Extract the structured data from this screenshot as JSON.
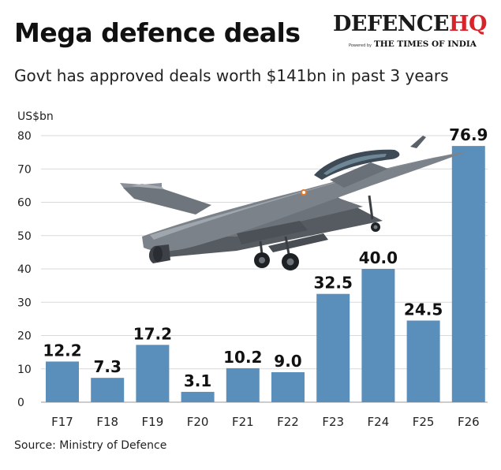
{
  "header": {
    "title": "Mega defence deals",
    "subtitle": "Govt has approved deals worth $141bn in past 3 years"
  },
  "brand": {
    "name_main": "DEFENCE",
    "name_accent": "HQ",
    "powered_by": "Powered by",
    "publisher": "THE TIMES OF INDIA",
    "accent_color": "#d8232a"
  },
  "footer": {
    "source": "Source: Ministry of Defence"
  },
  "illustration": {
    "icon": "fighter-jet-icon"
  },
  "chart_data": {
    "type": "bar",
    "title": "Mega defence deals",
    "subtitle": "Govt has approved deals worth $141bn in past 3 years",
    "ylabel": "US$bn",
    "xlabel": "",
    "categories": [
      "F17",
      "F18",
      "F19",
      "F20",
      "F21",
      "F22",
      "F23",
      "F24",
      "F25",
      "F26"
    ],
    "values": [
      12.2,
      7.3,
      17.2,
      3.1,
      10.2,
      9.0,
      32.5,
      40.0,
      24.5,
      76.9
    ],
    "value_labels": [
      "12.2",
      "7.3",
      "17.2",
      "3.1",
      "10.2",
      "9.0",
      "32.5",
      "40.0",
      "24.5",
      "76.9"
    ],
    "ylim": [
      0,
      80
    ],
    "yticks": [
      "0",
      "10",
      "20",
      "30",
      "40",
      "50",
      "60",
      "70",
      "80"
    ],
    "grid": true,
    "bar_color": "#5b8fbb",
    "legend": "none"
  }
}
